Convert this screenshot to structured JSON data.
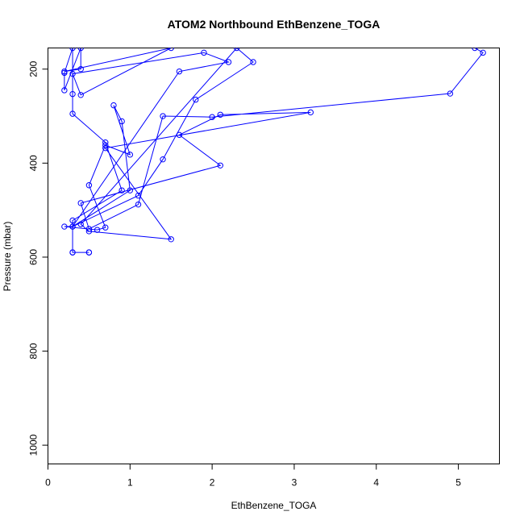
{
  "chart_data": {
    "type": "line",
    "title": "ATOM2 Northbound EthBenzene_TOGA",
    "xlabel": "EthBenzene_TOGA",
    "ylabel": "Pressure (mbar)",
    "xlim": [
      0,
      5.5
    ],
    "ylim": [
      1040,
      155
    ],
    "y_reversed": true,
    "x_ticks": [
      0,
      1,
      2,
      3,
      4,
      5
    ],
    "y_ticks": [
      200,
      400,
      600,
      800,
      1000
    ],
    "grid": false,
    "series_color": "#0000ff",
    "series": [
      {
        "marker": "open-circle",
        "points": [
          [
            0.5,
            590
          ],
          [
            0.3,
            590
          ],
          [
            0.5,
            590
          ],
          [
            0.3,
            590
          ],
          [
            0.3,
            522
          ],
          [
            0.9,
            458
          ],
          [
            0.7,
            356
          ],
          [
            0.3,
            295
          ],
          [
            0.3,
            253
          ],
          [
            0.3,
            155
          ],
          [
            0.2,
            208
          ],
          [
            0.2,
            245
          ],
          [
            0.4,
            155
          ],
          [
            0.4,
            200
          ],
          [
            0.2,
            205
          ],
          [
            1.5,
            155
          ],
          [
            0.4,
            255
          ],
          [
            0.3,
            210
          ],
          [
            1.9,
            165
          ],
          [
            2.2,
            185
          ],
          [
            1.6,
            205
          ],
          [
            0.3,
            535
          ],
          [
            0.2,
            535
          ],
          [
            0.6,
            542
          ],
          [
            0.7,
            537
          ],
          [
            0.5,
            447
          ],
          [
            0.7,
            362
          ],
          [
            1.0,
            382
          ],
          [
            0.8,
            277
          ],
          [
            0.9,
            311
          ],
          [
            1.0,
            458
          ],
          [
            0.3,
            535
          ],
          [
            1.1,
            469
          ],
          [
            1.4,
            392
          ],
          [
            1.8,
            265
          ],
          [
            2.5,
            185
          ],
          [
            2.3,
            155
          ],
          [
            0.4,
            530
          ],
          [
            0.5,
            545
          ],
          [
            1.5,
            562
          ],
          [
            0.7,
            368
          ],
          [
            3.2,
            292
          ],
          [
            2.1,
            297
          ],
          [
            1.6,
            340
          ],
          [
            2.1,
            405
          ],
          [
            0.4,
            485
          ],
          [
            0.5,
            540
          ],
          [
            1.1,
            488
          ],
          [
            1.4,
            300
          ],
          [
            2.0,
            302
          ],
          [
            4.9,
            252
          ],
          [
            5.3,
            165
          ],
          [
            5.2,
            155
          ]
        ]
      }
    ]
  }
}
